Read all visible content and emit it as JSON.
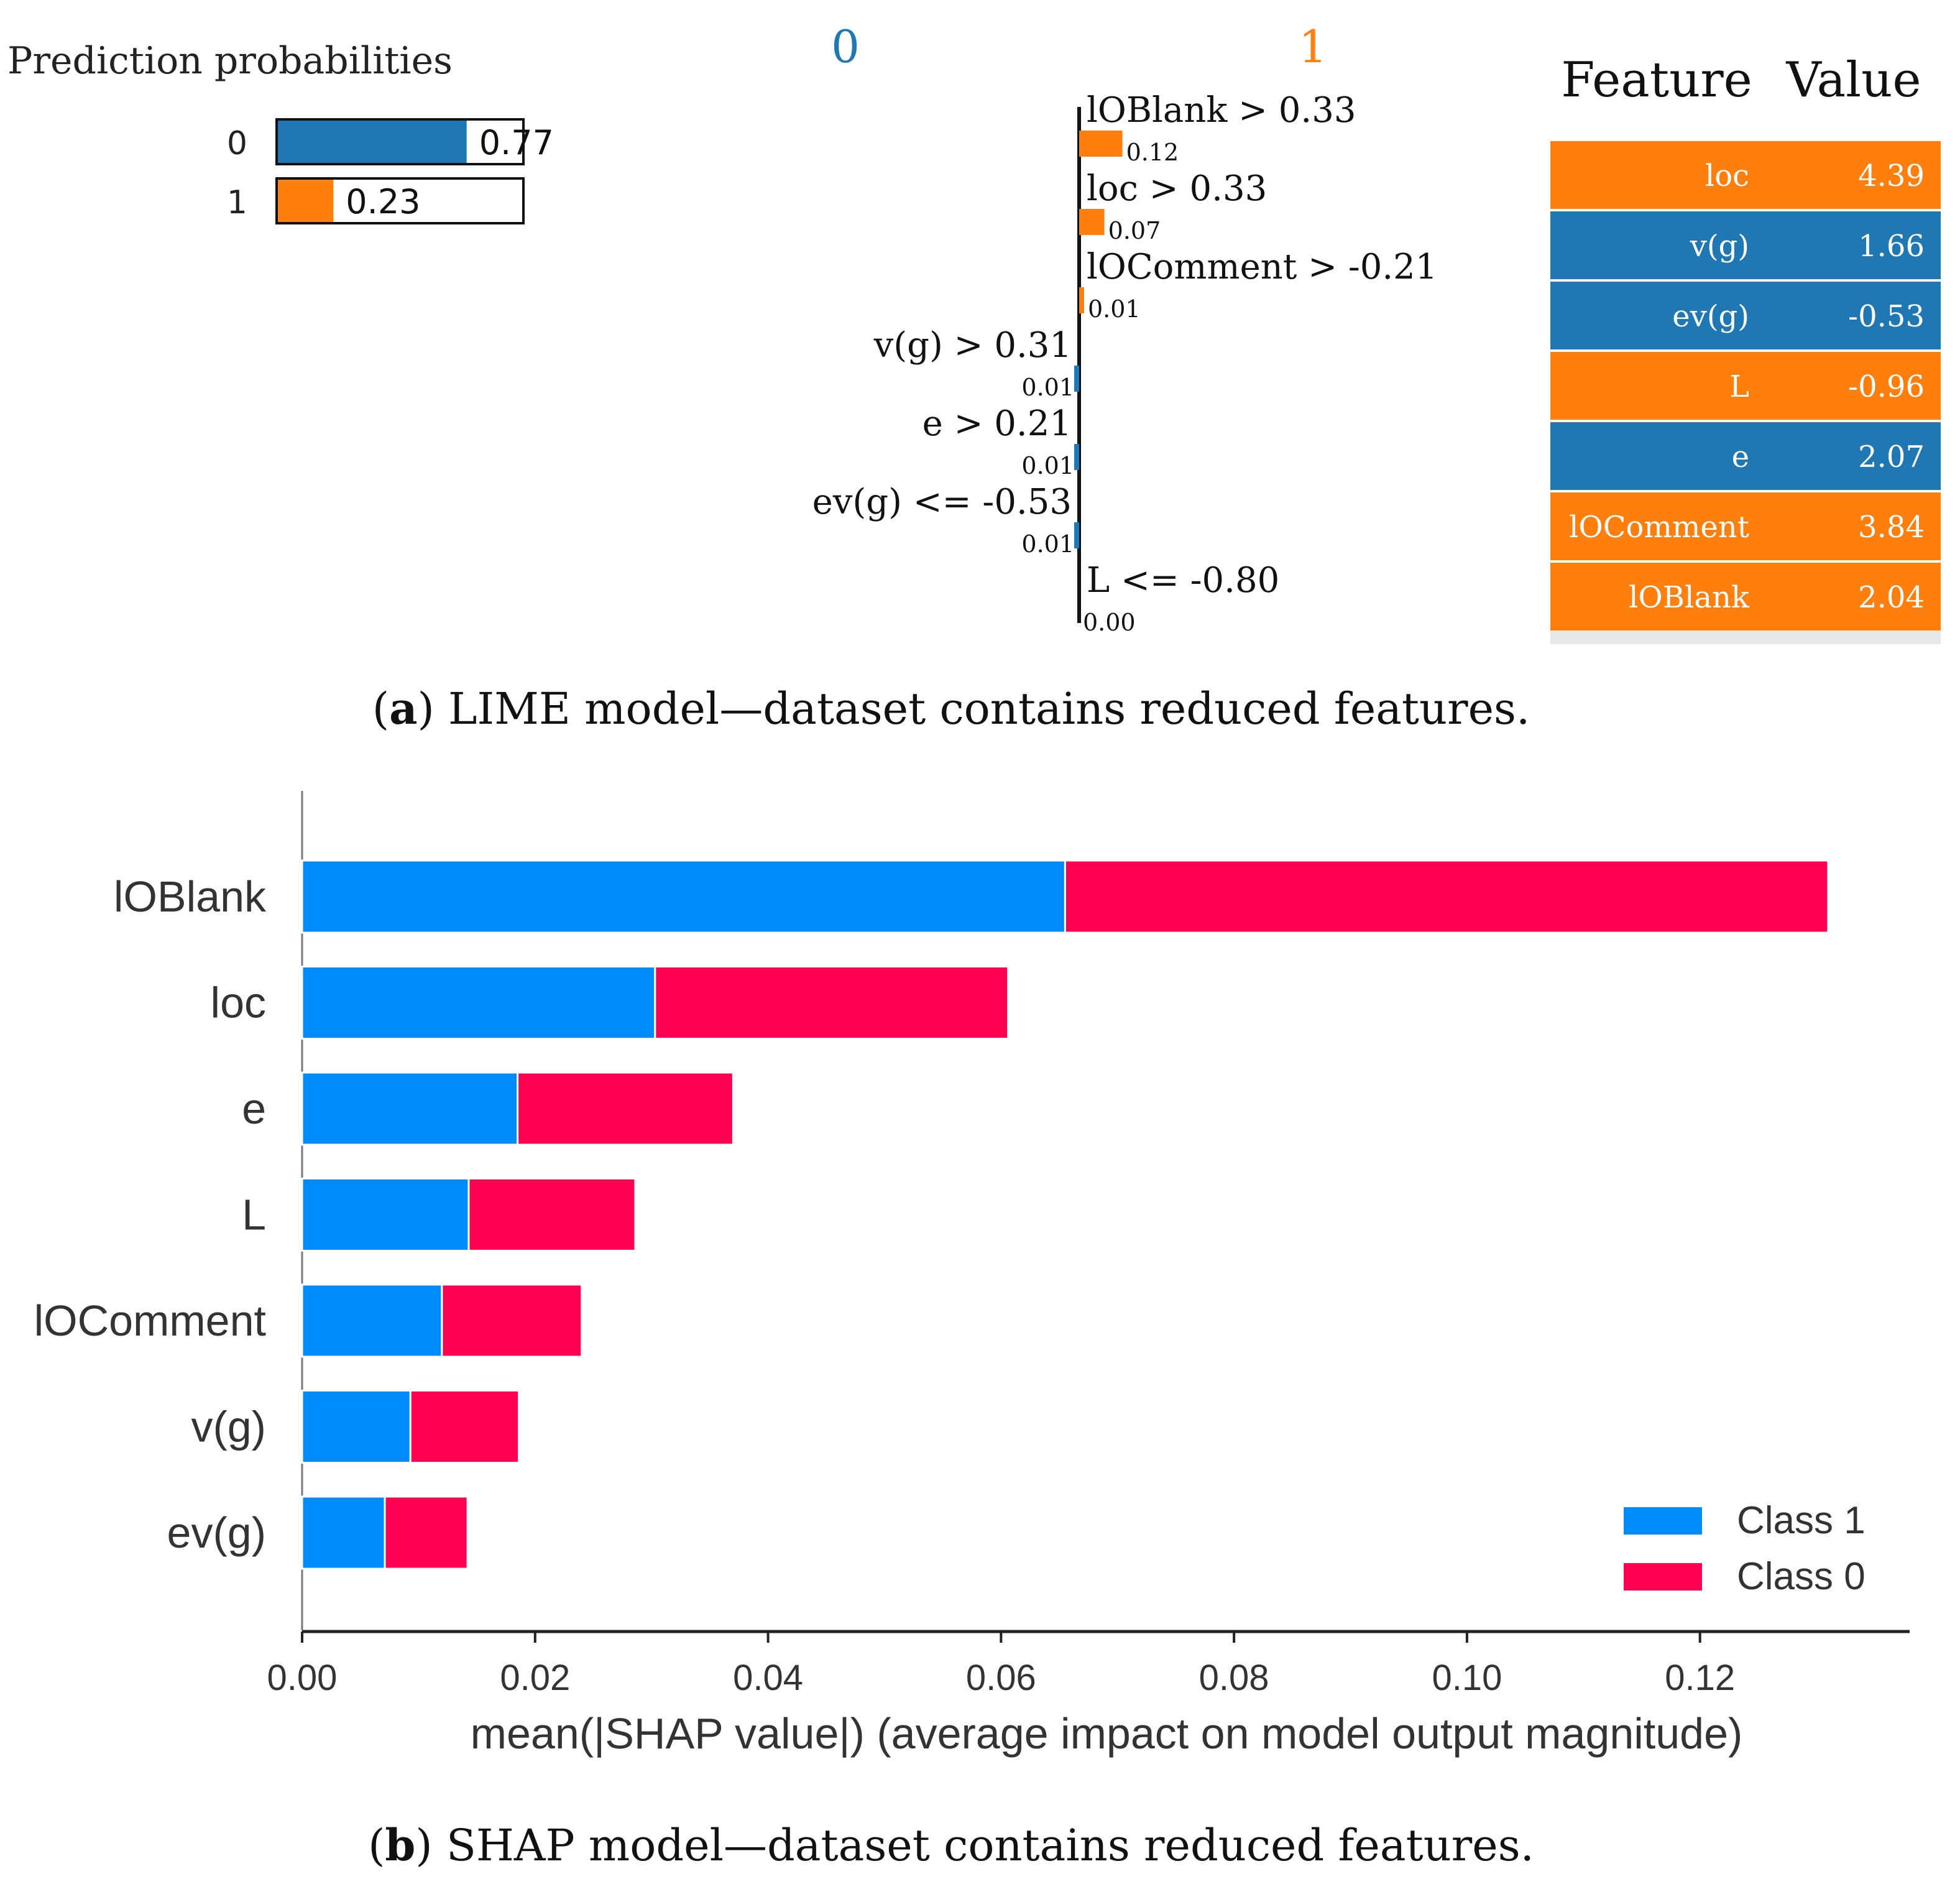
{
  "colors": {
    "lime_blue": "#1f77b4",
    "lime_orange": "#ff7f0e",
    "shap_blue": "#008bfb",
    "shap_red": "#ff0051",
    "table_bottom": "#e8e8e8"
  },
  "chart_data": [
    {
      "type": "bar",
      "panel": "lime-prediction-probabilities",
      "title": "Prediction probabilities",
      "categories": [
        "0",
        "1"
      ],
      "values": [
        0.77,
        0.23
      ],
      "value_labels": [
        "0.77",
        "0.23"
      ],
      "colors": [
        "#1f77b4",
        "#ff7f0e"
      ]
    },
    {
      "type": "bar",
      "panel": "lime-explanation",
      "class_labels": [
        "0",
        "1"
      ],
      "conditions": [
        "lOBlank > 0.33",
        "loc > 0.33",
        "lOComment > -0.21",
        "v(g) > 0.31",
        "e > 0.21",
        "ev(g) <= -0.53",
        "L <= -0.80"
      ],
      "weights": [
        0.12,
        0.07,
        0.01,
        0.01,
        0.01,
        0.01,
        0.0
      ],
      "weight_labels": [
        "0.12",
        "0.07",
        "0.01",
        "0.01",
        "0.01",
        "0.01",
        "0.00"
      ],
      "sides": [
        "1",
        "1",
        "1",
        "0",
        "0",
        "0",
        "1"
      ]
    },
    {
      "type": "table",
      "panel": "lime-feature-value-table",
      "headers": [
        "Feature",
        "Value"
      ],
      "rows": [
        {
          "feature": "loc",
          "value": "4.39",
          "color": "#ff7f0e"
        },
        {
          "feature": "v(g)",
          "value": "1.66",
          "color": "#1f77b4"
        },
        {
          "feature": "ev(g)",
          "value": "-0.53",
          "color": "#1f77b4"
        },
        {
          "feature": "L",
          "value": "-0.96",
          "color": "#ff7f0e"
        },
        {
          "feature": "e",
          "value": "2.07",
          "color": "#1f77b4"
        },
        {
          "feature": "lOComment",
          "value": "3.84",
          "color": "#ff7f0e"
        },
        {
          "feature": "lOBlank",
          "value": "2.04",
          "color": "#ff7f0e"
        }
      ]
    },
    {
      "type": "bar",
      "orientation": "horizontal",
      "stacked": true,
      "panel": "shap-summary",
      "categories": [
        "lOBlank",
        "loc",
        "e",
        "L",
        "lOComment",
        "v(g)",
        "ev(g)"
      ],
      "series": [
        {
          "name": "Class 1",
          "values": [
            0.0655,
            0.0303,
            0.0185,
            0.0143,
            0.012,
            0.0093,
            0.0071
          ]
        },
        {
          "name": "Class 0",
          "values": [
            0.0655,
            0.0303,
            0.0185,
            0.0143,
            0.012,
            0.0093,
            0.0071
          ]
        }
      ],
      "xlabel": "mean(|SHAP value|) (average impact on model output magnitude)",
      "xlim": [
        0,
        0.138
      ],
      "xticks": [
        0.0,
        0.02,
        0.04,
        0.06,
        0.08,
        0.1,
        0.12
      ],
      "xtick_labels": [
        "0.00",
        "0.02",
        "0.04",
        "0.06",
        "0.08",
        "0.10",
        "0.12"
      ],
      "legend": [
        "Class 1",
        "Class 0"
      ],
      "legend_position": "lower-right"
    }
  ],
  "captions": {
    "a": {
      "label": "a",
      "text": "LIME model—dataset contains reduced features."
    },
    "b": {
      "label": "b",
      "text": "SHAP model—dataset contains reduced features."
    }
  }
}
